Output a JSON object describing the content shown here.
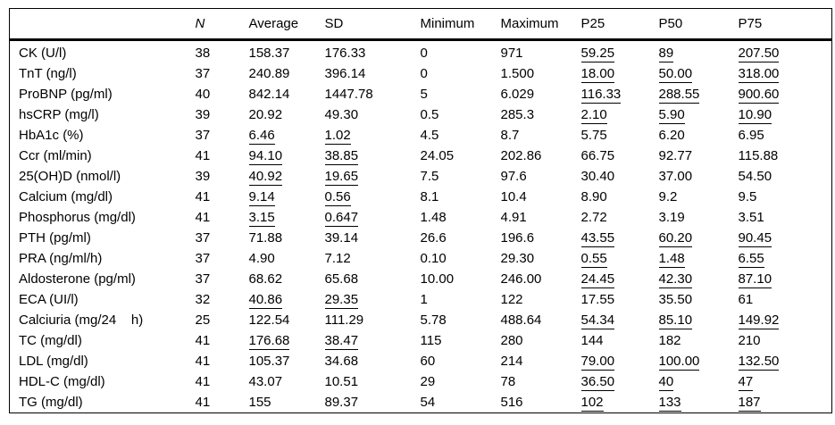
{
  "table": {
    "columns": [
      {
        "label": "",
        "italic": false
      },
      {
        "label": "N",
        "italic": true
      },
      {
        "label": "Average",
        "italic": false
      },
      {
        "label": "SD",
        "italic": false
      },
      {
        "label": "Minimum",
        "italic": false
      },
      {
        "label": "Maximum",
        "italic": false
      },
      {
        "label": "P25",
        "italic": false
      },
      {
        "label": "P50",
        "italic": false
      },
      {
        "label": "P75",
        "italic": false
      }
    ],
    "rows": [
      {
        "label": "CK (U/l)",
        "cells": [
          {
            "v": "38"
          },
          {
            "v": "158.37"
          },
          {
            "v": "176.33"
          },
          {
            "v": "0"
          },
          {
            "v": "971"
          },
          {
            "v": "59.25",
            "u": true
          },
          {
            "v": "89",
            "u": true
          },
          {
            "v": "207.50",
            "u": true
          }
        ]
      },
      {
        "label": "TnT (ng/l)",
        "cells": [
          {
            "v": "37"
          },
          {
            "v": "240.89"
          },
          {
            "v": "396.14"
          },
          {
            "v": "0"
          },
          {
            "v": "1.500"
          },
          {
            "v": "18.00",
            "u": true
          },
          {
            "v": "50.00",
            "u": true
          },
          {
            "v": "318.00",
            "u": true
          }
        ]
      },
      {
        "label": "ProBNP (pg/ml)",
        "cells": [
          {
            "v": "40"
          },
          {
            "v": "842.14"
          },
          {
            "v": "1447.78"
          },
          {
            "v": "5"
          },
          {
            "v": "6.029"
          },
          {
            "v": "116.33",
            "u": true
          },
          {
            "v": "288.55",
            "u": true
          },
          {
            "v": "900.60",
            "u": true
          }
        ]
      },
      {
        "label": "hsCRP (mg/l)",
        "cells": [
          {
            "v": "39"
          },
          {
            "v": "20.92"
          },
          {
            "v": "49.30"
          },
          {
            "v": "0.5"
          },
          {
            "v": "285.3"
          },
          {
            "v": "2.10",
            "u": true
          },
          {
            "v": "5.90",
            "u": true
          },
          {
            "v": "10.90",
            "u": true
          }
        ]
      },
      {
        "label": "HbA1c (%)",
        "cells": [
          {
            "v": "37"
          },
          {
            "v": "6.46",
            "u": true
          },
          {
            "v": "1.02",
            "u": true
          },
          {
            "v": "4.5"
          },
          {
            "v": "8.7"
          },
          {
            "v": "5.75"
          },
          {
            "v": "6.20"
          },
          {
            "v": "6.95"
          }
        ]
      },
      {
        "label": "Ccr (ml/min)",
        "cells": [
          {
            "v": "41"
          },
          {
            "v": "94.10",
            "u": true
          },
          {
            "v": "38.85",
            "u": true
          },
          {
            "v": "24.05"
          },
          {
            "v": "202.86"
          },
          {
            "v": "66.75"
          },
          {
            "v": "92.77"
          },
          {
            "v": "115.88"
          }
        ]
      },
      {
        "label": "25(OH)D (nmol/l)",
        "cells": [
          {
            "v": "39"
          },
          {
            "v": "40.92",
            "u": true
          },
          {
            "v": "19.65",
            "u": true
          },
          {
            "v": "7.5"
          },
          {
            "v": "97.6"
          },
          {
            "v": "30.40"
          },
          {
            "v": "37.00"
          },
          {
            "v": "54.50"
          }
        ]
      },
      {
        "label": "Calcium (mg/dl)",
        "cells": [
          {
            "v": "41"
          },
          {
            "v": "9.14",
            "u": true
          },
          {
            "v": "0.56",
            "u": true
          },
          {
            "v": "8.1"
          },
          {
            "v": "10.4"
          },
          {
            "v": "8.90"
          },
          {
            "v": "9.2"
          },
          {
            "v": "9.5"
          }
        ]
      },
      {
        "label": "Phosphorus (mg/dl)",
        "cells": [
          {
            "v": "41"
          },
          {
            "v": "3.15",
            "u": true
          },
          {
            "v": "0.647",
            "u": true
          },
          {
            "v": "1.48"
          },
          {
            "v": "4.91"
          },
          {
            "v": "2.72"
          },
          {
            "v": "3.19"
          },
          {
            "v": "3.51"
          }
        ]
      },
      {
        "label": "PTH (pg/ml)",
        "cells": [
          {
            "v": "37"
          },
          {
            "v": "71.88"
          },
          {
            "v": "39.14"
          },
          {
            "v": "26.6"
          },
          {
            "v": "196.6"
          },
          {
            "v": "43.55",
            "u": true
          },
          {
            "v": "60.20",
            "u": true
          },
          {
            "v": "90.45",
            "u": true
          }
        ]
      },
      {
        "label": "PRA (ng/ml/h)",
        "cells": [
          {
            "v": "37"
          },
          {
            "v": "4.90"
          },
          {
            "v": "7.12"
          },
          {
            "v": "0.10"
          },
          {
            "v": "29.30"
          },
          {
            "v": "0.55",
            "u": true
          },
          {
            "v": "1.48",
            "u": true
          },
          {
            "v": "6.55",
            "u": true
          }
        ]
      },
      {
        "label": "Aldosterone (pg/ml)",
        "cells": [
          {
            "v": "37"
          },
          {
            "v": "68.62"
          },
          {
            "v": "65.68"
          },
          {
            "v": "10.00"
          },
          {
            "v": "246.00"
          },
          {
            "v": "24.45",
            "u": true
          },
          {
            "v": "42.30",
            "u": true
          },
          {
            "v": "87.10",
            "u": true
          }
        ]
      },
      {
        "label": "ECA (UI/l)",
        "cells": [
          {
            "v": "32"
          },
          {
            "v": "40.86",
            "u": true
          },
          {
            "v": "29.35",
            "u": true
          },
          {
            "v": "1"
          },
          {
            "v": "122"
          },
          {
            "v": "17.55"
          },
          {
            "v": "35.50"
          },
          {
            "v": "61"
          }
        ]
      },
      {
        "label": "Calciuria (mg/24    h)",
        "cells": [
          {
            "v": "25"
          },
          {
            "v": "122.54"
          },
          {
            "v": "111.29"
          },
          {
            "v": "5.78"
          },
          {
            "v": "488.64"
          },
          {
            "v": "54.34",
            "u": true
          },
          {
            "v": "85.10",
            "u": true
          },
          {
            "v": "149.92",
            "u": true
          }
        ]
      },
      {
        "label": "TC (mg/dl)",
        "cells": [
          {
            "v": "41"
          },
          {
            "v": "176.68",
            "u": true
          },
          {
            "v": "38.47",
            "u": true
          },
          {
            "v": "115"
          },
          {
            "v": "280"
          },
          {
            "v": "144"
          },
          {
            "v": "182"
          },
          {
            "v": "210"
          }
        ]
      },
      {
        "label": "LDL (mg/dl)",
        "cells": [
          {
            "v": "41"
          },
          {
            "v": "105.37"
          },
          {
            "v": "34.68"
          },
          {
            "v": "60"
          },
          {
            "v": "214"
          },
          {
            "v": "79.00",
            "u": true
          },
          {
            "v": "100.00",
            "u": true
          },
          {
            "v": "132.50",
            "u": true
          }
        ]
      },
      {
        "label": "HDL-C (mg/dl)",
        "cells": [
          {
            "v": "41"
          },
          {
            "v": "43.07"
          },
          {
            "v": "10.51"
          },
          {
            "v": "29"
          },
          {
            "v": "78"
          },
          {
            "v": "36.50",
            "u": true
          },
          {
            "v": "40",
            "u": true
          },
          {
            "v": "47",
            "u": true
          }
        ]
      },
      {
        "label": "TG (mg/dl)",
        "cells": [
          {
            "v": "41"
          },
          {
            "v": "155"
          },
          {
            "v": "89.37"
          },
          {
            "v": "54"
          },
          {
            "v": "516"
          },
          {
            "v": "102",
            "u": true
          },
          {
            "v": "133",
            "u": true
          },
          {
            "v": "187",
            "u": true
          }
        ]
      }
    ]
  }
}
